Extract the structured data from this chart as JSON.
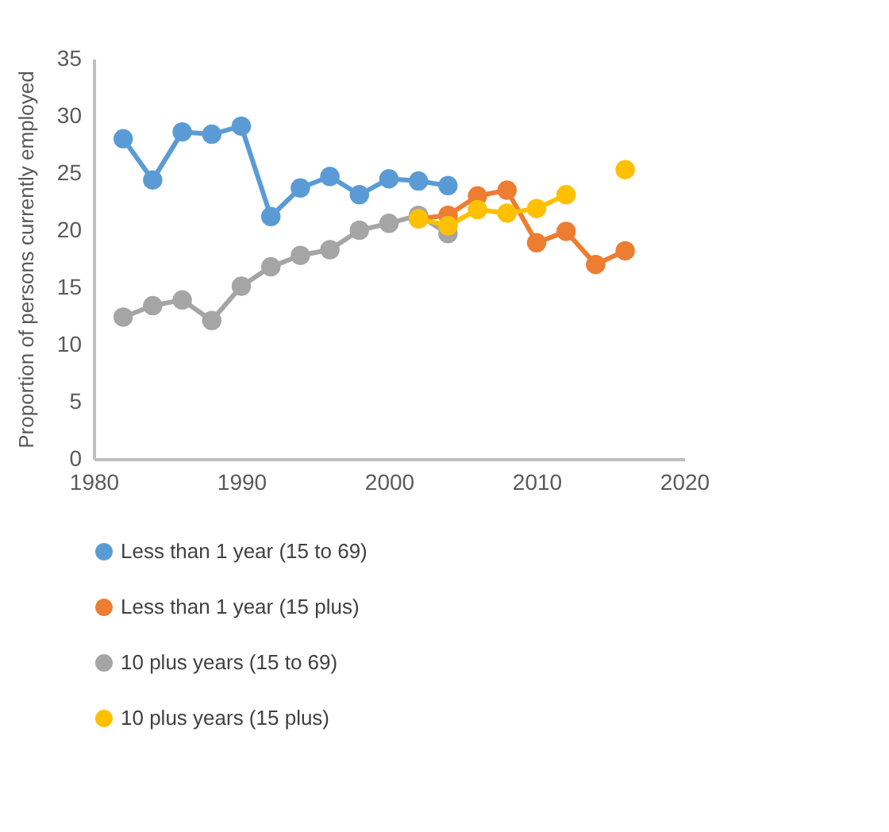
{
  "chart_data": {
    "type": "line",
    "ylabel": "Proportion of persons currently employed",
    "xlim": [
      1980,
      2020
    ],
    "xticks": [
      1980,
      1990,
      2000,
      2010,
      2020
    ],
    "ylim": [
      0,
      35
    ],
    "yticks": [
      0,
      5,
      10,
      15,
      20,
      25,
      30,
      35
    ],
    "grid": false,
    "legend": "bottom",
    "marker": "circle",
    "series": [
      {
        "name": "Less than 1 year (15 to 69)",
        "color": "#5b9bd5",
        "x": [
          1982,
          1984,
          1986,
          1988,
          1990,
          1992,
          1994,
          1996,
          1998,
          2000,
          2002,
          2004
        ],
        "values": [
          28.0,
          24.4,
          28.6,
          28.4,
          29.1,
          21.2,
          23.7,
          24.7,
          23.1,
          24.5,
          24.3,
          23.9
        ]
      },
      {
        "name": "Less than 1 year (15 plus)",
        "color": "#ed7d31",
        "x": [
          2002,
          2004,
          2006,
          2008,
          2010,
          2012,
          2014,
          2016
        ],
        "values": [
          21.0,
          21.3,
          23.0,
          23.5,
          18.9,
          19.9,
          17.0,
          18.2
        ]
      },
      {
        "name": "10 plus years (15 to 69)",
        "color": "#a5a5a5",
        "x": [
          1982,
          1984,
          1986,
          1988,
          1990,
          1992,
          1994,
          1996,
          1998,
          2000,
          2002,
          2004
        ],
        "values": [
          12.4,
          13.4,
          13.9,
          12.1,
          15.1,
          16.8,
          17.8,
          18.3,
          20.0,
          20.6,
          21.3,
          19.7
        ]
      },
      {
        "name": "10 plus years (15 plus)",
        "color": "#ffc000",
        "x": [
          2002,
          2004,
          2006,
          2008,
          2010,
          2012,
          2014,
          2016
        ],
        "values": [
          21.0,
          20.4,
          21.8,
          21.5,
          21.9,
          23.1,
          null,
          25.3
        ]
      }
    ]
  }
}
